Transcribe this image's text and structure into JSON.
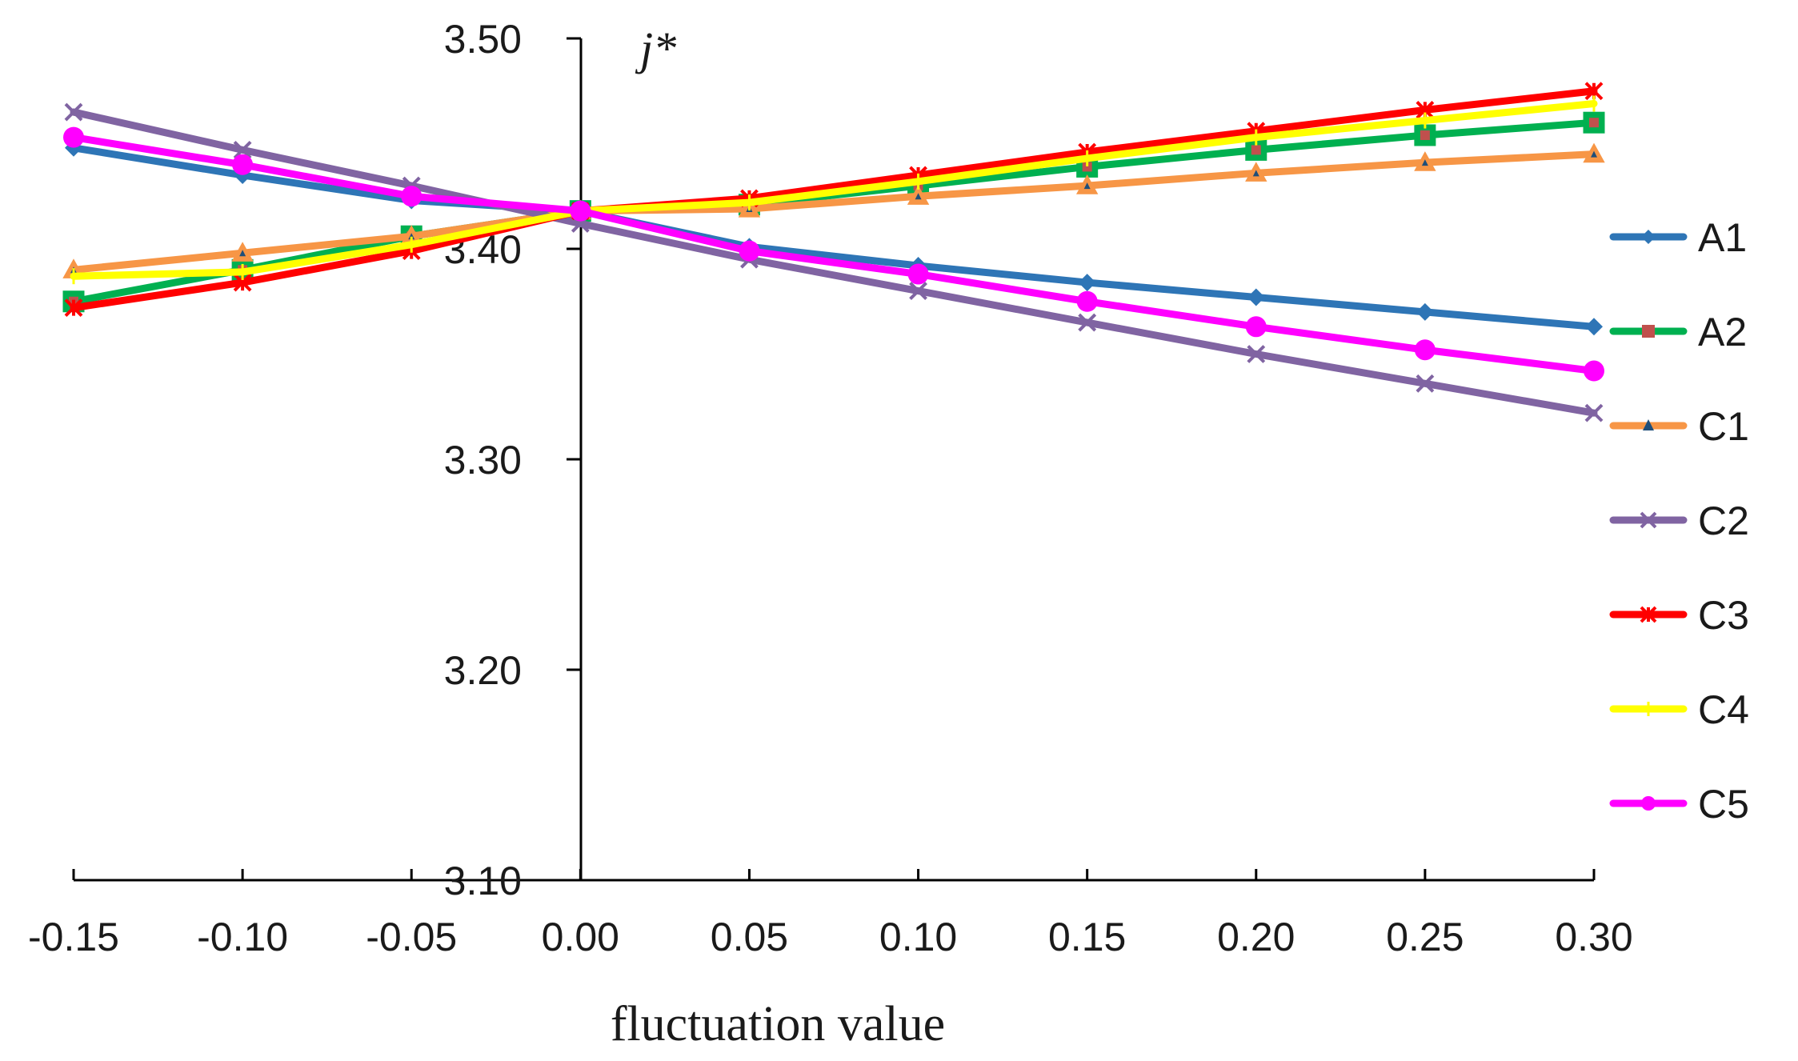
{
  "chart_data": {
    "type": "line",
    "title": "",
    "xlabel": "fluctuation value",
    "ylabel": "j*",
    "x": [
      -0.15,
      -0.1,
      -0.05,
      0.0,
      0.05,
      0.1,
      0.15,
      0.2,
      0.25,
      0.3
    ],
    "x_tick_labels": [
      "-0.15",
      "-0.10",
      "-0.05",
      "0.00",
      "0.05",
      "0.10",
      "0.15",
      "0.20",
      "0.25",
      "0.30"
    ],
    "y_tick_values": [
      3.1,
      3.2,
      3.3,
      3.4,
      3.5
    ],
    "y_tick_labels": [
      "3.10",
      "3.20",
      "3.30",
      "3.40",
      "3.50"
    ],
    "xlim": [
      -0.15,
      0.3
    ],
    "ylim": [
      3.1,
      3.5
    ],
    "grid": false,
    "legend_position": "right",
    "series": [
      {
        "name": "A1",
        "color": "#2E75B6",
        "marker": "diamond",
        "values": [
          3.448,
          3.435,
          3.423,
          3.418,
          3.401,
          3.392,
          3.384,
          3.377,
          3.37,
          3.363
        ]
      },
      {
        "name": "A2",
        "color": "#00B050",
        "marker": "square",
        "marker_color": "#C0504D",
        "values": [
          3.375,
          3.39,
          3.406,
          3.418,
          3.421,
          3.43,
          3.439,
          3.447,
          3.454,
          3.46
        ]
      },
      {
        "name": "C1",
        "color": "#F79646",
        "marker": "triangle",
        "marker_color": "#1F4E79",
        "values": [
          3.39,
          3.398,
          3.406,
          3.418,
          3.419,
          3.425,
          3.43,
          3.436,
          3.441,
          3.445
        ]
      },
      {
        "name": "C2",
        "color": "#8064A2",
        "marker": "x",
        "values": [
          3.465,
          3.447,
          3.43,
          3.412,
          3.395,
          3.38,
          3.365,
          3.35,
          3.336,
          3.322
        ]
      },
      {
        "name": "C3",
        "color": "#FF0000",
        "marker": "star",
        "values": [
          3.372,
          3.384,
          3.399,
          3.418,
          3.424,
          3.435,
          3.446,
          3.456,
          3.466,
          3.475
        ]
      },
      {
        "name": "C4",
        "color": "#FFFF00",
        "marker": "plus",
        "values": [
          3.387,
          3.389,
          3.402,
          3.418,
          3.422,
          3.432,
          3.443,
          3.453,
          3.461,
          3.469
        ]
      },
      {
        "name": "C5",
        "color": "#FF00FF",
        "marker": "circle",
        "values": [
          3.453,
          3.44,
          3.425,
          3.418,
          3.399,
          3.388,
          3.375,
          3.363,
          3.352,
          3.342
        ]
      }
    ]
  }
}
